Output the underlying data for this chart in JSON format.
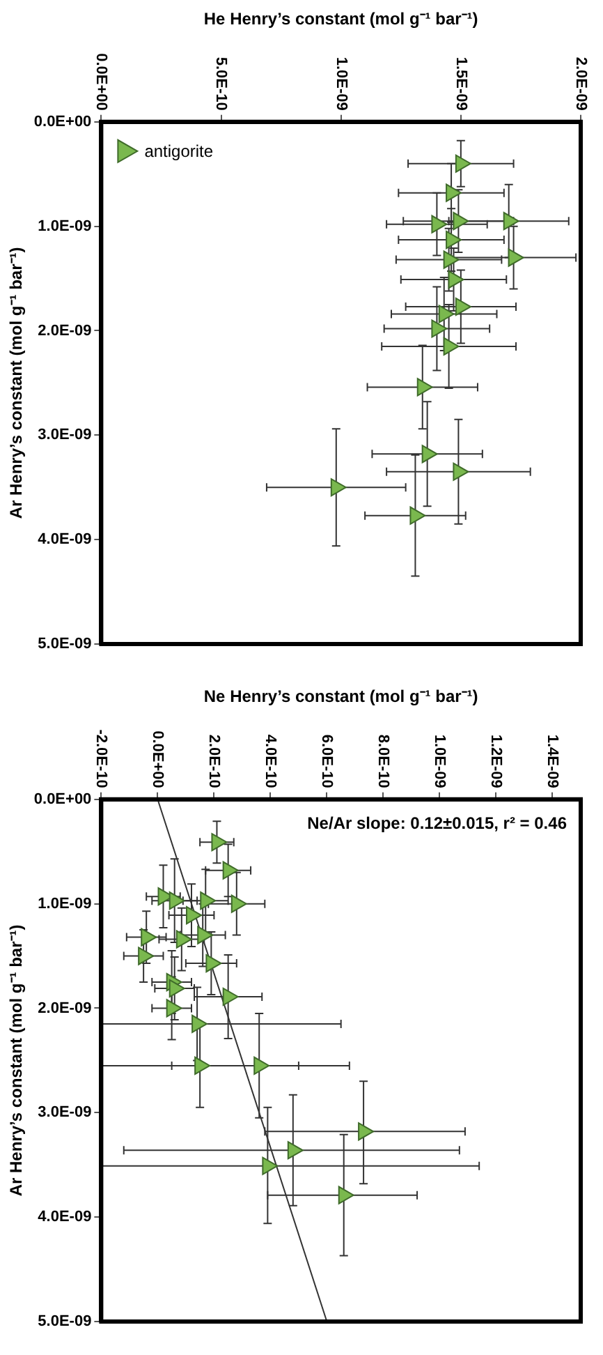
{
  "chart_data": [
    {
      "type": "scatter",
      "xlabel": "He Henry’s constant (mol g⁻¹ bar⁻¹)",
      "ylabel": "Ar Henry’s constant (mol g⁻¹ bar⁻¹)",
      "xlim": [
        0,
        2e-09
      ],
      "xticks": [
        {
          "value": 0,
          "label": "0.0E+00"
        },
        {
          "value": 5e-10,
          "label": "5.0E-10"
        },
        {
          "value": 1e-09,
          "label": "1.0E-09"
        },
        {
          "value": 1.5e-09,
          "label": "1.5E-09"
        },
        {
          "value": 2e-09,
          "label": "2.0E-09"
        }
      ],
      "ylim": [
        5e-09,
        0
      ],
      "yticks": [
        {
          "value": 0,
          "label": "0.0E+00"
        },
        {
          "value": 1e-09,
          "label": "1.0E-09"
        },
        {
          "value": 2e-09,
          "label": "2.0E-09"
        },
        {
          "value": 3e-09,
          "label": "3.0E-09"
        },
        {
          "value": 4e-09,
          "label": "4.0E-09"
        },
        {
          "value": 5e-09,
          "label": "5.0E-09"
        }
      ],
      "grid": false,
      "legend": "top left",
      "marker": "triangle",
      "series": [
        {
          "name": "antigorite",
          "color": "#7ab84e",
          "x": [
            1.5e-09,
            1.46e-09,
            1.7e-09,
            1.49e-09,
            1.4e-09,
            1.72e-09,
            1.46e-09,
            1.45e-09,
            1.47e-09,
            1.5e-09,
            1.43e-09,
            1.4e-09,
            1.45e-09,
            1.34e-09,
            1.36e-09,
            1.49e-09,
            9.8e-10,
            1.31e-09
          ],
          "values": [
            4e-10,
            6.8e-10,
            9.5e-10,
            9.5e-10,
            9.8e-10,
            1.3e-09,
            1.13e-09,
            1.32e-09,
            1.51e-09,
            1.77e-09,
            1.84e-09,
            1.98e-09,
            2.15e-09,
            2.54e-09,
            3.18e-09,
            3.35e-09,
            3.5e-09,
            3.77e-09
          ],
          "xerrors": [
            2.2e-10,
            2.2e-10,
            2.5e-10,
            2.3e-10,
            2.1e-10,
            2.6e-10,
            2.2e-10,
            2.2e-10,
            2.2e-10,
            2.3e-10,
            2.2e-10,
            2.2e-10,
            2.8e-10,
            2.3e-10,
            2.3e-10,
            3e-10,
            2.9e-10,
            2.1e-10
          ],
          "errors": [
            2.2e-10,
            2.8e-10,
            3.5e-10,
            3e-10,
            3e-10,
            3e-10,
            3e-10,
            3e-10,
            3e-10,
            3.5e-10,
            3.5e-10,
            4e-10,
            4e-10,
            4e-10,
            5e-10,
            5e-10,
            5.6e-10,
            5.8e-10
          ]
        }
      ]
    },
    {
      "type": "scatter",
      "xlabel": "Ne Henry’s constant (mol g⁻¹ bar⁻¹)",
      "ylabel": "Ar Henry’s constant (mol g⁻¹ bar⁻¹)",
      "annotations": [
        "Ne/Ar slope: 0.12±0.015, r² = 0.46"
      ],
      "xlim": [
        -2e-10,
        1.5e-09
      ],
      "xticks": [
        {
          "value": -2e-10,
          "label": "-2.0E-10"
        },
        {
          "value": 0,
          "label": "0.0E+00"
        },
        {
          "value": 2e-10,
          "label": "2.0E-10"
        },
        {
          "value": 4e-10,
          "label": "4.0E-10"
        },
        {
          "value": 6e-10,
          "label": "6.0E-10"
        },
        {
          "value": 8e-10,
          "label": "8.0E-10"
        },
        {
          "value": 1e-09,
          "label": "1.0E-09"
        },
        {
          "value": 1.2e-09,
          "label": "1.2E-09"
        },
        {
          "value": 1.4e-09,
          "label": "1.4E-09"
        }
      ],
      "ylim": [
        5e-09,
        0
      ],
      "yticks": [
        {
          "value": 0,
          "label": "0.0E+00"
        },
        {
          "value": 1e-09,
          "label": "1.0E-09"
        },
        {
          "value": 2e-09,
          "label": "2.0E-09"
        },
        {
          "value": 3e-09,
          "label": "3.0E-09"
        },
        {
          "value": 4e-09,
          "label": "4.0E-09"
        },
        {
          "value": 5e-09,
          "label": "5.0E-09"
        }
      ],
      "grid": false,
      "marker": "triangle",
      "series": [
        {
          "color": "#7ab84e",
          "x": [
            2.1e-10,
            2.5e-10,
            2.8e-10,
            1.7e-10,
            2e-11,
            6e-11,
            1.2e-10,
            1.6e-10,
            8.5e-11,
            -4e-11,
            -5e-11,
            1.9e-10,
            2.5e-10,
            5e-11,
            6e-11,
            5e-11,
            1.4e-10,
            1.5e-10,
            3.6e-10,
            7.3e-10,
            4.8e-10,
            3.9e-10,
            6.6e-10
          ],
          "values": [
            4.1e-10,
            6.8e-10,
            1e-09,
            9.7e-10,
            9.3e-10,
            9.7e-10,
            1.11e-09,
            1.3e-09,
            1.34e-09,
            1.32e-09,
            1.5e-09,
            1.57e-09,
            1.89e-09,
            1.75e-09,
            1.81e-09,
            2e-09,
            2.15e-09,
            2.55e-09,
            2.55e-09,
            3.18e-09,
            3.36e-09,
            3.51e-09,
            3.79e-09
          ],
          "xerrors": [
            6e-11,
            8e-11,
            1e-10,
            8e-11,
            6e-11,
            8e-11,
            8e-11,
            8e-11,
            8e-11,
            7e-11,
            7e-11,
            9e-11,
            1.2e-10,
            7e-11,
            7e-11,
            7e-11,
            [
              -2e-10,
              6.5e-10
            ],
            [
              -2e-10,
              6.8e-10
            ],
            [
              5e-11,
              5e-10
            ],
            [
              3.8e-10,
              1.09e-09
            ],
            [
              -1.2e-10,
              1.07e-09
            ],
            [
              -2e-10,
              1.14e-09
            ],
            [
              3.9e-10,
              9.2e-10
            ]
          ],
          "errors": [
            2e-10,
            2.5e-10,
            3e-10,
            3e-10,
            3e-10,
            4e-10,
            3e-10,
            3e-10,
            3e-10,
            2.5e-10,
            2.5e-10,
            3e-10,
            4e-10,
            3e-10,
            3e-10,
            3e-10,
            3.5e-10,
            4e-10,
            5e-10,
            [
              2.7e-09,
              3.68e-09
            ],
            [
              2.83e-09,
              3.89e-09
            ],
            [
              2.95e-09,
              4.06e-09
            ],
            [
              3.21e-09,
              4.37e-09
            ]
          ]
        },
        {
          "type": "line",
          "color": "#333333",
          "marker": "none",
          "x": [
            0,
            6e-10
          ],
          "values": [
            0,
            5e-09
          ]
        }
      ]
    }
  ]
}
